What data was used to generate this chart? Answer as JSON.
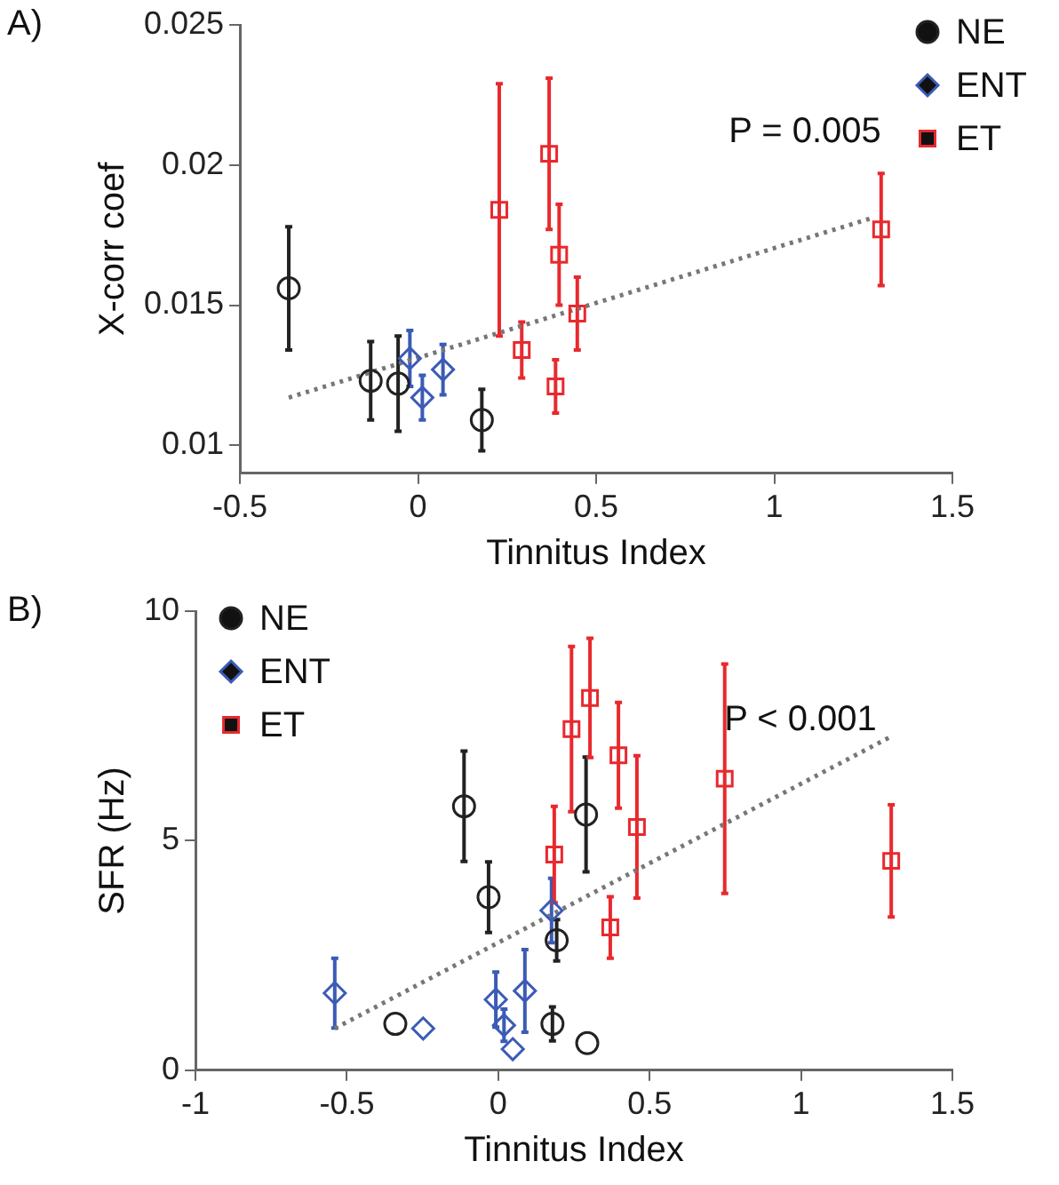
{
  "chart_data": [
    {
      "type": "scatter",
      "title": "A)",
      "xlabel": "Tinnitus Index",
      "ylabel": "X-corr coef",
      "annotations": [
        "P = 0.005"
      ],
      "xlim": [
        -0.5,
        1.5
      ],
      "xticks": [
        -0.5,
        0,
        0.5,
        1,
        1.5
      ],
      "ylim": [
        0.009,
        0.025
      ],
      "yticks": [
        0.01,
        0.015,
        0.02,
        0.025
      ],
      "grid": false,
      "legend": "top right",
      "series": [
        {
          "name": "NE",
          "color": "#222222",
          "marker": "circle",
          "x": [
            -0.363,
            -0.133,
            -0.056,
            0.179
          ],
          "values": [
            0.0156,
            0.0123,
            0.0122,
            0.0109
          ],
          "errors": [
            0.0022,
            0.0014,
            0.0017,
            0.0011
          ]
        },
        {
          "name": "ENT",
          "color": "#3b5bb5",
          "marker": "diamond",
          "x": [
            -0.023,
            0.012,
            0.07
          ],
          "values": [
            0.0131,
            0.0117,
            0.0127
          ],
          "errors": [
            0.001,
            0.0008,
            0.0009
          ]
        },
        {
          "name": "ET",
          "color": "#e8292e",
          "marker": "square",
          "x": [
            0.228,
            0.368,
            0.396,
            0.447,
            0.291,
            0.386,
            1.3
          ],
          "values": [
            0.0184,
            0.0204,
            0.0168,
            0.0147,
            0.0134,
            0.0121,
            0.0177
          ],
          "errors": [
            0.0045,
            0.0027,
            0.0018,
            0.0013,
            0.001,
            0.00095,
            0.002
          ]
        },
        {
          "type": "line",
          "color": "#777777",
          "line_style": "dotted",
          "marker": "none",
          "x": [
            -0.363,
            1.272
          ],
          "values": [
            0.0117,
            0.0181
          ]
        }
      ]
    },
    {
      "type": "scatter",
      "title": "B)",
      "xlabel": "Tinnitus Index",
      "ylabel": "SFR (Hz)",
      "annotations": [
        "P < 0.001"
      ],
      "xlim": [
        -1,
        1.5
      ],
      "xticks": [
        -1,
        -0.5,
        0,
        0.5,
        1,
        1.5
      ],
      "ylim": [
        0,
        10
      ],
      "yticks": [
        0,
        5,
        10
      ],
      "grid": false,
      "legend": "top left",
      "series": [
        {
          "name": "NE",
          "color": "#222222",
          "marker": "circle",
          "x": [
            -0.113,
            -0.032,
            0.193,
            0.29,
            -0.34,
            0.179,
            0.294
          ],
          "values": [
            5.75,
            3.77,
            2.83,
            5.57,
            1.01,
            1.01,
            0.59
          ],
          "errors": [
            1.2,
            0.77,
            0.45,
            1.25,
            null,
            0.37,
            null
          ]
        },
        {
          "name": "ENT",
          "color": "#3b5bb5",
          "marker": "diamond",
          "x": [
            -0.54,
            -0.248,
            -0.008,
            0.019,
            0.048,
            0.088,
            0.176
          ],
          "values": [
            1.68,
            0.91,
            1.54,
            0.98,
            0.46,
            1.73,
            3.48
          ],
          "errors": [
            0.76,
            null,
            0.6,
            0.35,
            null,
            0.9,
            0.7
          ]
        },
        {
          "name": "ET",
          "color": "#e8292e",
          "marker": "square",
          "x": [
            0.185,
            0.242,
            0.303,
            0.397,
            0.458,
            0.37,
            0.748,
            1.298
          ],
          "values": [
            4.7,
            7.43,
            8.11,
            6.86,
            5.3,
            3.11,
            6.35,
            4.56
          ],
          "errors": [
            1.05,
            1.8,
            1.3,
            1.15,
            1.55,
            0.67,
            2.5,
            1.22
          ]
        },
        {
          "type": "line",
          "color": "#777777",
          "line_style": "dotted",
          "marker": "none",
          "x": [
            -0.54,
            1.292
          ],
          "values": [
            0.91,
            7.25
          ]
        }
      ]
    }
  ]
}
